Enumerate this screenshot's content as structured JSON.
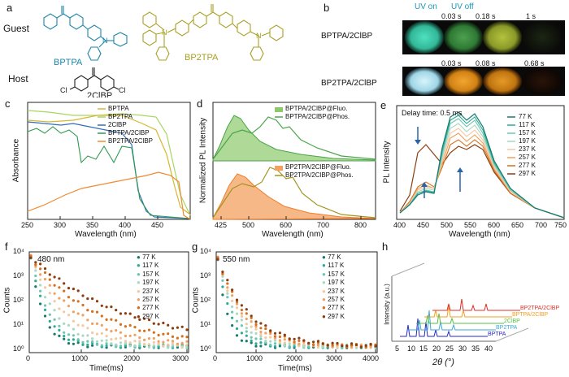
{
  "panels": {
    "a": {
      "letter": "a",
      "guest_label": "Guest",
      "host_label": "Host",
      "molecules": [
        "BPTPA",
        "BP2TPA",
        "2ClBP"
      ],
      "colors": {
        "bptpa": "#1c86a8",
        "bp2tpa": "#a9a025",
        "host": "#222222"
      },
      "atom_label": "N",
      "cl_label": "Cl"
    },
    "b": {
      "letter": "b",
      "uv_on": "UV on",
      "uv_off": "UV off",
      "row1": {
        "label": "BPTPA/2ClBP",
        "times": [
          "0.03 s",
          "0.18 s",
          "1 s"
        ],
        "colors": [
          "#39c8a5",
          "#3a8a3e",
          "#9aac2e",
          "#121810"
        ]
      },
      "row2": {
        "label": "BP2TPA/2ClBP",
        "times": [
          "0.03 s",
          "0.08 s",
          "0.68 s"
        ],
        "colors": [
          "#b8e4ee",
          "#d98a14",
          "#c97a10",
          "#1a0e08"
        ]
      }
    },
    "c": {
      "letter": "c",
      "xlabel": "Wavelength (nm)",
      "ylabel": "Absorbance",
      "xticks": [
        "250",
        "300",
        "350",
        "400",
        "450"
      ],
      "legend": [
        "BPTPA",
        "BP2TPA",
        "2ClBP",
        "BPTPA/2ClBP",
        "BP2TPA/2ClBP"
      ],
      "colors": [
        "#d5b832",
        "#a8d760",
        "#2e6fba",
        "#2f9a4f",
        "#ef8a30"
      ]
    },
    "d": {
      "letter": "d",
      "xlabel": "Wavelength (nm)",
      "ylabel": "Normalized PL Intensity",
      "xticks": [
        "425",
        "500",
        "600",
        "700",
        "800"
      ],
      "legend_top": [
        "BPTPA/2ClBP@Fluo.",
        "BPTPA/2ClBP@Phos."
      ],
      "legend_bottom": [
        "BP2TPA/2ClBP@Fluo.",
        "BP2TPA/2ClBP@Phos."
      ],
      "colors": {
        "green": "#4aa548",
        "orange": "#f07d2a",
        "olive": "#a39520"
      }
    },
    "e": {
      "letter": "e",
      "xlabel": "Wavelength (nm)",
      "ylabel": "PL Intensity",
      "annotation": "Delay time: 0.5 ms",
      "xticks": [
        "400",
        "450",
        "500",
        "550",
        "600",
        "650",
        "700",
        "750"
      ],
      "legend": [
        "77 K",
        "117 K",
        "157 K",
        "197 K",
        "237 K",
        "257 K",
        "277 K",
        "297 K"
      ],
      "colors": [
        "#177a6e",
        "#2eab96",
        "#6ec6b2",
        "#a9d9c2",
        "#f3c9a0",
        "#f0a060",
        "#d4701e",
        "#8a3e10"
      ]
    },
    "f": {
      "letter": "f",
      "annotation": "480 nm",
      "xlabel": "Time(ms)",
      "ylabel": "Counts",
      "xticks": [
        "0",
        "1000",
        "2000",
        "3000"
      ],
      "yticks": [
        "10⁰",
        "10¹",
        "10²",
        "10³",
        "10⁴"
      ],
      "legend": [
        "77 K",
        "117 K",
        "157 K",
        "197 K",
        "237 K",
        "257 K",
        "277 K",
        "297 K"
      ]
    },
    "g": {
      "letter": "g",
      "annotation": "550 nm",
      "xlabel": "Time(ms)",
      "ylabel": "Counts",
      "xticks": [
        "0",
        "1000",
        "2000",
        "3000",
        "4000"
      ],
      "yticks": [
        "10⁰",
        "10¹",
        "10²",
        "10³",
        "10⁴"
      ],
      "legend": [
        "77 K",
        "117 K",
        "157 K",
        "197 K",
        "237 K",
        "257 K",
        "277 K",
        "297 K"
      ]
    },
    "h": {
      "letter": "h",
      "ylabel": "Intensity (a.u.)",
      "xlabel": "2θ (°)",
      "xticks": [
        "5",
        "10",
        "15",
        "20",
        "25",
        "30",
        "35",
        "40"
      ],
      "series": [
        "BP2TPA/2ClBP",
        "BPTPA/2ClBP",
        "2ClBP",
        "BP2TPA",
        "BPTPA"
      ],
      "colors": [
        "#e0302a",
        "#f0a020",
        "#58c040",
        "#3aa8d8",
        "#2a2ac8"
      ]
    }
  }
}
